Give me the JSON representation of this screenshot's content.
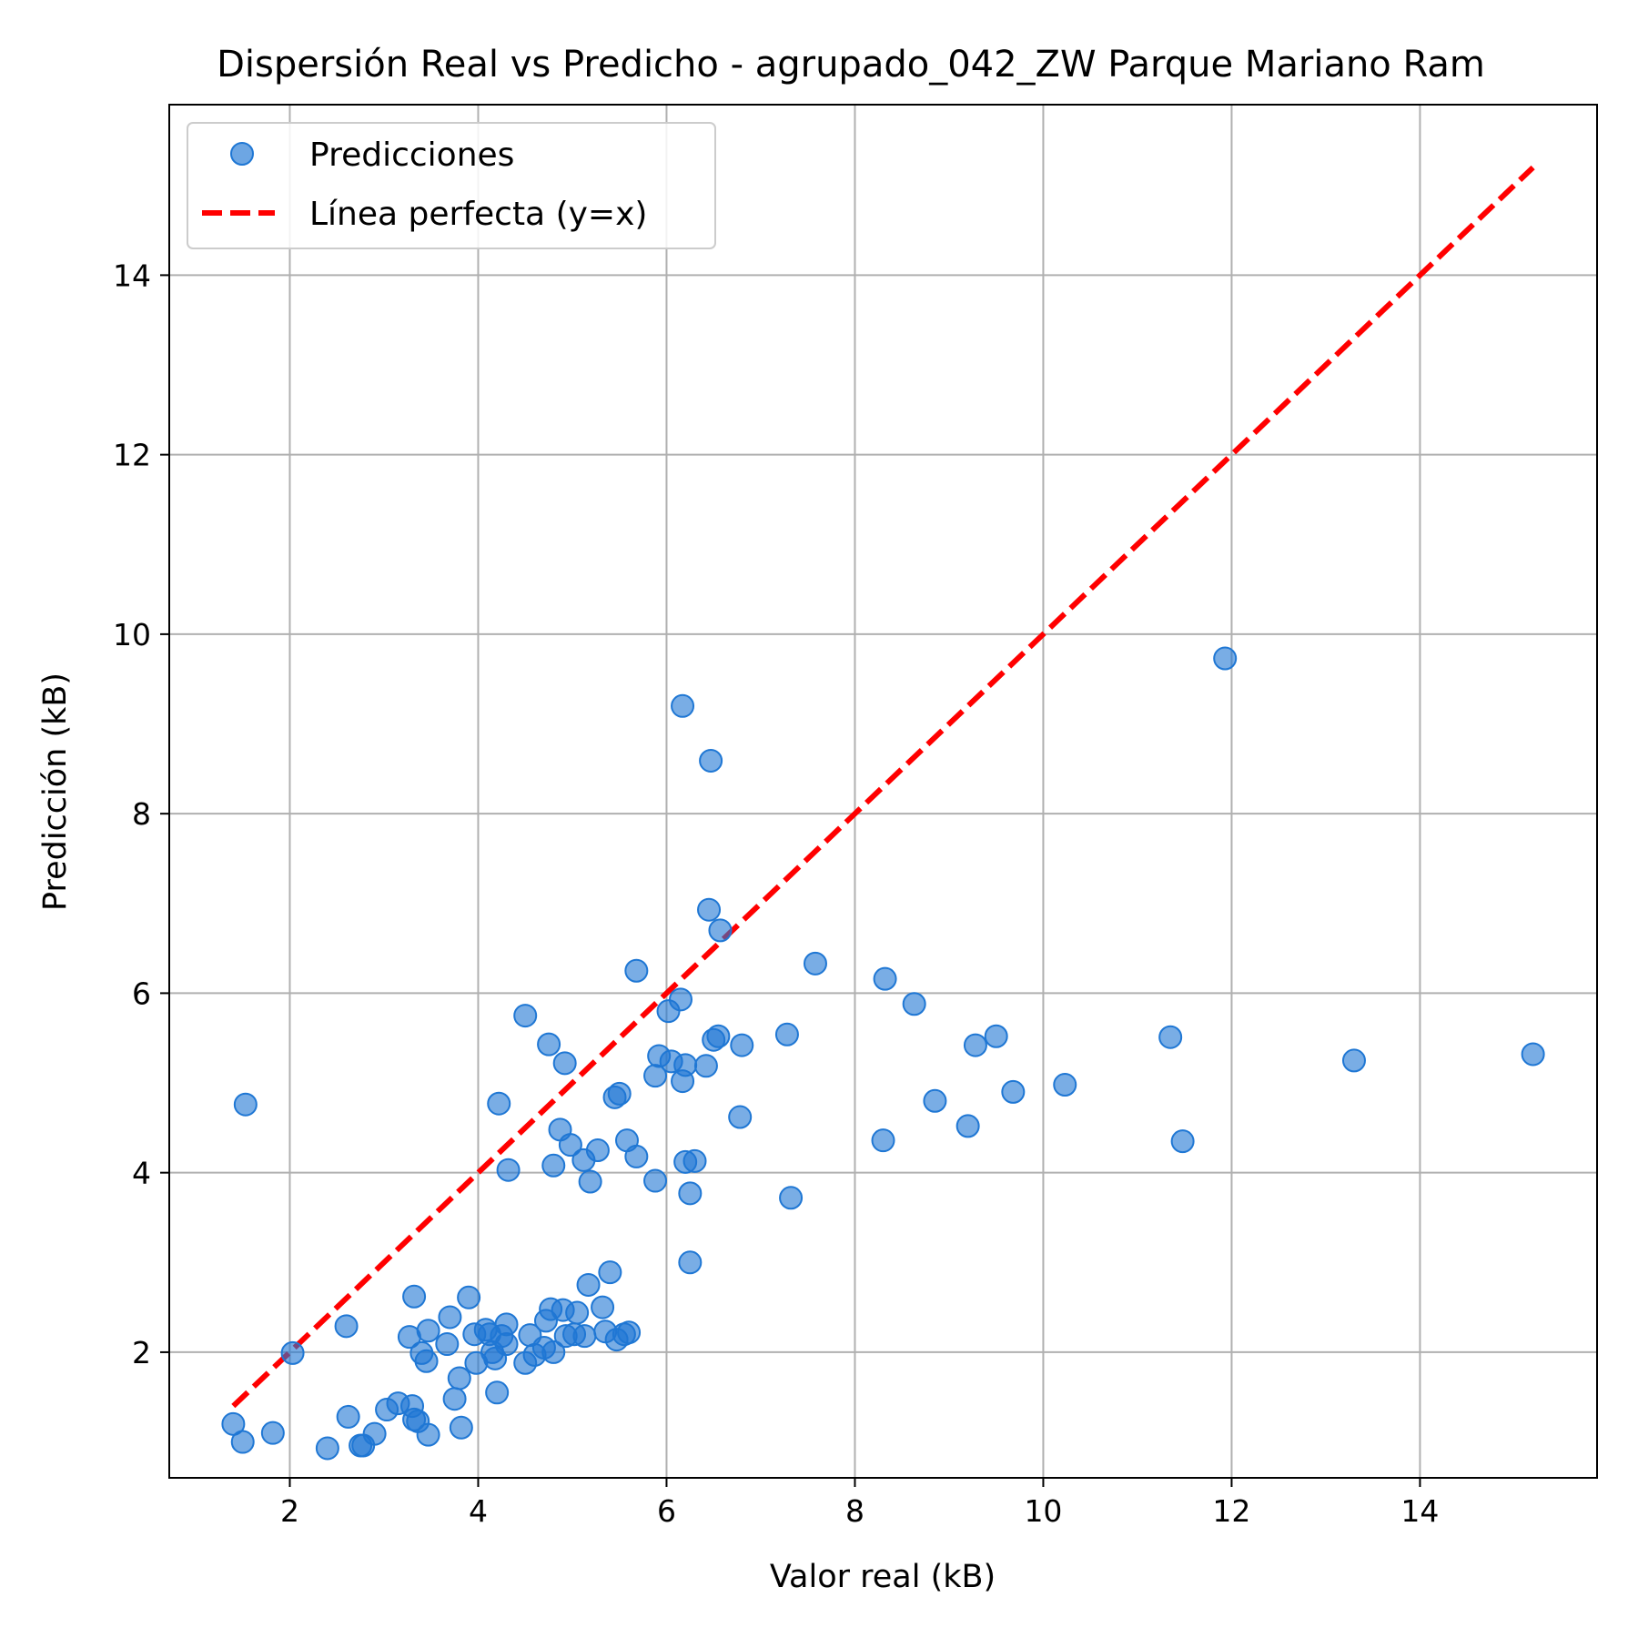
{
  "chart_data": {
    "type": "scatter",
    "title": "Dispersión Real vs Predicho - agrupado_042_ZW Parque Mariano Ram",
    "xlabel": "Valor real (kB)",
    "ylabel": "Predicción (kB)",
    "xlim": [
      0.72,
      15.88
    ],
    "ylim": [
      0.6,
      15.9
    ],
    "xticks": [
      "2",
      "4",
      "6",
      "8",
      "10",
      "12",
      "14"
    ],
    "yticks": [
      "2",
      "4",
      "6",
      "8",
      "10",
      "12",
      "14"
    ],
    "grid": true,
    "legend": {
      "position": "top-left",
      "entries": [
        "Predicciones",
        "Línea perfecta (y=x)"
      ]
    },
    "colors": {
      "points": "#1f77d4",
      "perfect_line": "#ff0000"
    },
    "perfect_line": {
      "name": "Línea perfecta (y=x)",
      "from": 1.4,
      "to": 15.2
    },
    "series": [
      {
        "name": "Predicciones",
        "points": [
          [
            1.4,
            1.2
          ],
          [
            1.5,
            1.0
          ],
          [
            1.53,
            4.76
          ],
          [
            1.82,
            1.1
          ],
          [
            2.03,
            1.99
          ],
          [
            2.4,
            0.93
          ],
          [
            2.6,
            2.29
          ],
          [
            2.62,
            1.28
          ],
          [
            2.75,
            0.96
          ],
          [
            2.78,
            0.96
          ],
          [
            2.9,
            1.09
          ],
          [
            3.03,
            1.36
          ],
          [
            3.15,
            1.43
          ],
          [
            3.27,
            2.17
          ],
          [
            3.3,
            1.4
          ],
          [
            3.32,
            2.62
          ],
          [
            3.32,
            1.25
          ],
          [
            3.36,
            1.23
          ],
          [
            3.4,
            1.99
          ],
          [
            3.45,
            1.9
          ],
          [
            3.47,
            2.24
          ],
          [
            3.47,
            1.08
          ],
          [
            3.67,
            2.09
          ],
          [
            3.7,
            2.39
          ],
          [
            3.75,
            1.48
          ],
          [
            3.8,
            1.71
          ],
          [
            3.82,
            1.16
          ],
          [
            3.9,
            2.61
          ],
          [
            3.96,
            2.2
          ],
          [
            3.98,
            1.88
          ],
          [
            4.08,
            2.25
          ],
          [
            4.12,
            2.2
          ],
          [
            4.15,
            2.0
          ],
          [
            4.18,
            1.93
          ],
          [
            4.2,
            1.55
          ],
          [
            4.22,
            4.77
          ],
          [
            4.25,
            2.18
          ],
          [
            4.3,
            2.09
          ],
          [
            4.3,
            2.31
          ],
          [
            4.32,
            4.03
          ],
          [
            4.5,
            5.75
          ],
          [
            4.5,
            1.88
          ],
          [
            4.55,
            2.19
          ],
          [
            4.6,
            1.97
          ],
          [
            4.7,
            2.05
          ],
          [
            4.72,
            2.35
          ],
          [
            4.75,
            5.43
          ],
          [
            4.77,
            2.48
          ],
          [
            4.8,
            4.08
          ],
          [
            4.8,
            2.0
          ],
          [
            4.87,
            4.48
          ],
          [
            4.9,
            2.47
          ],
          [
            4.92,
            5.22
          ],
          [
            4.93,
            2.18
          ],
          [
            4.98,
            4.31
          ],
          [
            5.02,
            2.2
          ],
          [
            5.05,
            2.44
          ],
          [
            5.12,
            4.14
          ],
          [
            5.13,
            2.18
          ],
          [
            5.17,
            2.75
          ],
          [
            5.19,
            3.9
          ],
          [
            5.27,
            4.25
          ],
          [
            5.32,
            2.5
          ],
          [
            5.35,
            2.23
          ],
          [
            5.4,
            2.89
          ],
          [
            5.45,
            4.84
          ],
          [
            5.47,
            2.14
          ],
          [
            5.5,
            4.88
          ],
          [
            5.55,
            2.2
          ],
          [
            5.58,
            4.36
          ],
          [
            5.6,
            2.22
          ],
          [
            5.68,
            4.18
          ],
          [
            5.68,
            6.25
          ],
          [
            5.88,
            3.91
          ],
          [
            5.88,
            5.08
          ],
          [
            5.92,
            5.3
          ],
          [
            6.02,
            5.8
          ],
          [
            6.05,
            5.24
          ],
          [
            6.15,
            5.93
          ],
          [
            6.17,
            9.2
          ],
          [
            6.17,
            5.02
          ],
          [
            6.2,
            4.12
          ],
          [
            6.2,
            5.2
          ],
          [
            6.25,
            3.77
          ],
          [
            6.25,
            3.0
          ],
          [
            6.3,
            4.13
          ],
          [
            6.42,
            5.19
          ],
          [
            6.45,
            6.93
          ],
          [
            6.47,
            8.59
          ],
          [
            6.5,
            5.48
          ],
          [
            6.55,
            5.52
          ],
          [
            6.57,
            6.7
          ],
          [
            6.78,
            4.62
          ],
          [
            6.8,
            5.42
          ],
          [
            7.28,
            5.54
          ],
          [
            7.32,
            3.72
          ],
          [
            7.58,
            6.33
          ],
          [
            8.3,
            4.36
          ],
          [
            8.32,
            6.16
          ],
          [
            8.63,
            5.88
          ],
          [
            8.85,
            4.8
          ],
          [
            9.2,
            4.52
          ],
          [
            9.28,
            5.42
          ],
          [
            9.5,
            5.52
          ],
          [
            9.68,
            4.9
          ],
          [
            10.23,
            4.98
          ],
          [
            11.35,
            5.51
          ],
          [
            11.48,
            4.35
          ],
          [
            11.93,
            9.73
          ],
          [
            13.3,
            5.25
          ],
          [
            15.2,
            5.32
          ]
        ]
      }
    ]
  }
}
